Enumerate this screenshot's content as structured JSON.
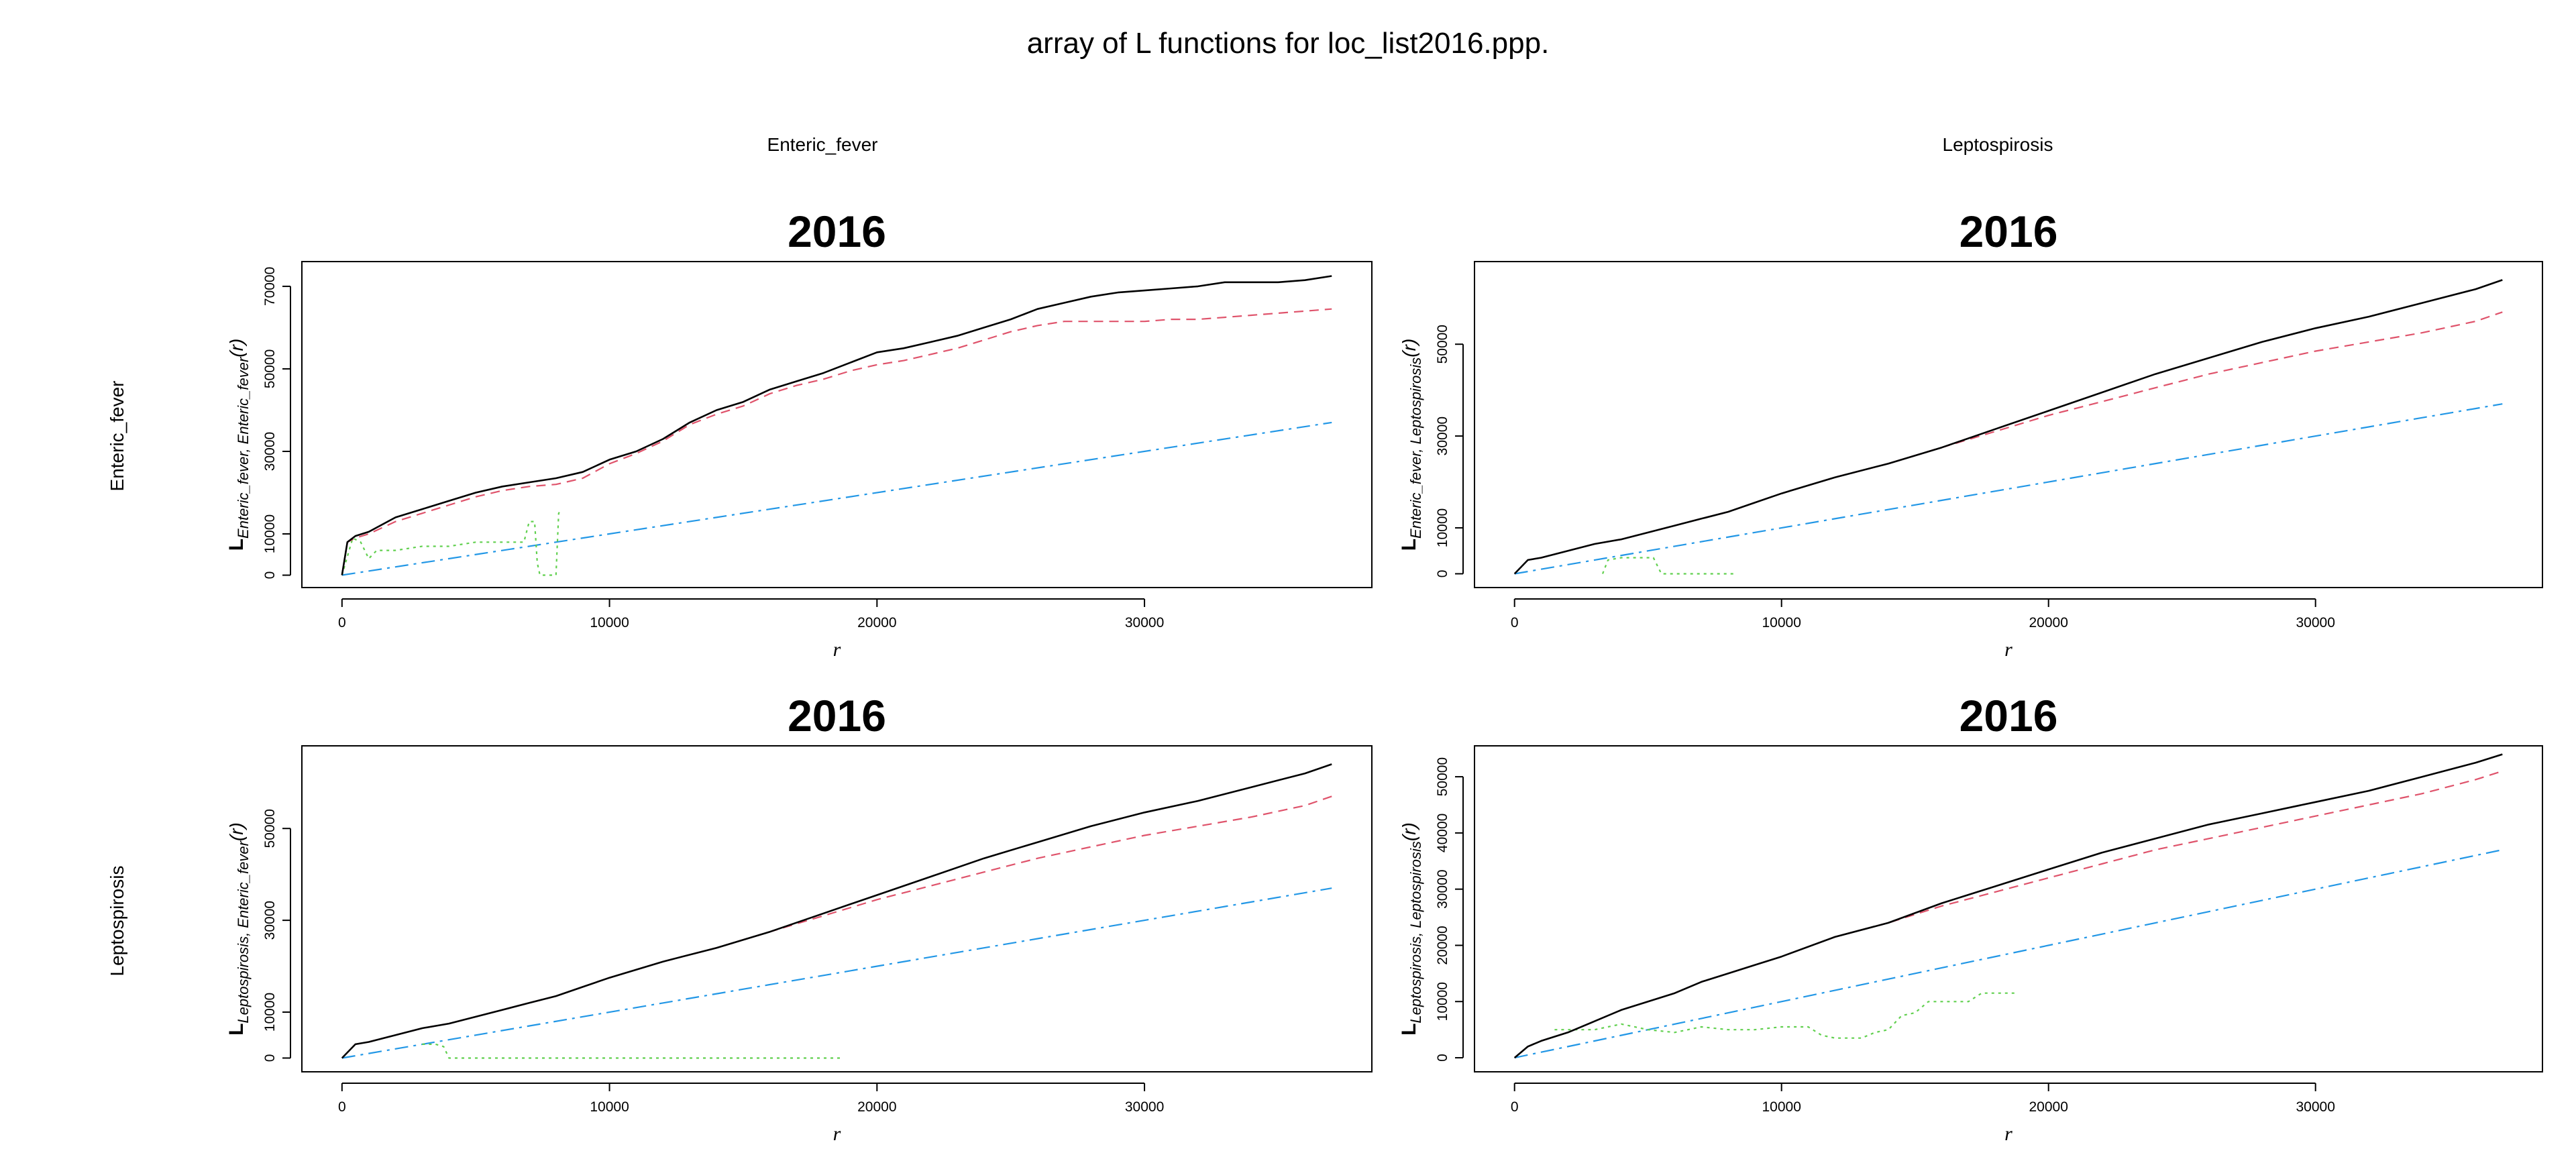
{
  "title": "array of L functions for loc_list2016.ppp.",
  "column_labels": [
    "Enteric_fever",
    "Leptospirosis"
  ],
  "row_labels": [
    "Enteric_fever",
    "Leptospirosis"
  ],
  "colors": {
    "obs": "#000000",
    "trans": "#DF536B",
    "theo": "#2297E6",
    "border": "#61D04F"
  },
  "chart_data": [
    {
      "type": "line",
      "title": "2016",
      "xlabel": "r",
      "ylabel": "L Enteric_fever, Enteric_fever(r)",
      "ylabel_main": "L",
      "ylabel_sub": "Enteric_fever, Enteric_fever",
      "ylabel_tail": "(r)",
      "xlim": [
        -1500,
        38500
      ],
      "ylim": [
        -3000,
        76000
      ],
      "xticks": [
        0,
        10000,
        20000,
        30000
      ],
      "yticks": [
        0,
        10000,
        30000,
        50000,
        70000
      ],
      "series": [
        {
          "key": "obs",
          "dash": "",
          "x": [
            0,
            200,
            500,
            1000,
            2000,
            3000,
            4000,
            5000,
            6000,
            7000,
            8000,
            9000,
            10000,
            11000,
            12000,
            13000,
            14000,
            15000,
            16000,
            17000,
            18000,
            19000,
            20000,
            21000,
            22000,
            23000,
            24000,
            25000,
            26000,
            27000,
            28000,
            29000,
            30000,
            31000,
            32000,
            33000,
            34000,
            35000,
            36000,
            37000
          ],
          "y": [
            0,
            8000,
            9500,
            10500,
            14000,
            16000,
            18000,
            20000,
            21500,
            22500,
            23500,
            25000,
            28000,
            30000,
            33000,
            37000,
            40000,
            42000,
            45000,
            47000,
            49000,
            51500,
            54000,
            55000,
            56500,
            58000,
            60000,
            62000,
            64500,
            66000,
            67500,
            68500,
            69000,
            69500,
            70000,
            71000,
            71000,
            71000,
            71500,
            72500
          ]
        },
        {
          "key": "trans",
          "dash": "14,9",
          "x": [
            0,
            200,
            500,
            1000,
            2000,
            3000,
            4000,
            5000,
            6000,
            7000,
            8000,
            9000,
            10000,
            11000,
            12000,
            13000,
            14000,
            15000,
            16000,
            17000,
            18000,
            19000,
            20000,
            21000,
            22000,
            23000,
            24000,
            25000,
            26000,
            27000,
            28000,
            29000,
            30000,
            31000,
            32000,
            33000,
            34000,
            35000,
            36000,
            37000
          ],
          "y": [
            0,
            8000,
            9000,
            10000,
            13000,
            15000,
            17000,
            19000,
            20500,
            21500,
            22000,
            23500,
            27000,
            29500,
            32500,
            36500,
            39000,
            41000,
            44000,
            46000,
            47500,
            49500,
            51000,
            52000,
            53500,
            55000,
            57000,
            59000,
            60500,
            61500,
            61500,
            61500,
            61500,
            62000,
            62000,
            62500,
            63000,
            63500,
            64000,
            64500
          ]
        },
        {
          "key": "theo",
          "dash": "20,8,4,8",
          "x": [
            0,
            37000
          ],
          "y": [
            0,
            37000
          ]
        },
        {
          "key": "border",
          "dash": "4,6",
          "x": [
            0,
            400,
            700,
            1000,
            1300,
            1500,
            2000,
            3000,
            4000,
            5000,
            6000,
            6800,
            7000,
            7200,
            7300,
            7400,
            7500,
            8000,
            8100,
            8200
          ],
          "y": [
            0,
            9000,
            8000,
            4000,
            6000,
            6000,
            6000,
            7000,
            7000,
            8000,
            8000,
            8000,
            13000,
            13000,
            3000,
            0,
            0,
            0,
            15000,
            16000
          ]
        }
      ]
    },
    {
      "type": "line",
      "title": "2016",
      "xlabel": "r",
      "ylabel": "L Enteric_fever, Leptospirosis(r)",
      "ylabel_main": "L",
      "ylabel_sub": "Enteric_fever, Leptospirosis",
      "ylabel_tail": "(r)",
      "xlim": [
        -1500,
        38500
      ],
      "ylim": [
        -3000,
        68000
      ],
      "xticks": [
        0,
        10000,
        20000,
        30000
      ],
      "yticks": [
        0,
        10000,
        30000,
        50000
      ],
      "series": [
        {
          "key": "obs",
          "dash": "",
          "x": [
            0,
            500,
            1000,
            2000,
            3000,
            4000,
            5000,
            6000,
            7000,
            8000,
            9000,
            10000,
            12000,
            14000,
            16000,
            18000,
            20000,
            22000,
            24000,
            26000,
            28000,
            30000,
            32000,
            34000,
            36000,
            37000
          ],
          "y": [
            0,
            3000,
            3500,
            5000,
            6500,
            7500,
            9000,
            10500,
            12000,
            13500,
            15500,
            17500,
            21000,
            24000,
            27500,
            31500,
            35500,
            39500,
            43500,
            47000,
            50500,
            53500,
            56000,
            59000,
            62000,
            64000
          ]
        },
        {
          "key": "trans",
          "dash": "14,9",
          "x": [
            0,
            500,
            1000,
            2000,
            3000,
            4000,
            5000,
            6000,
            7000,
            8000,
            9000,
            10000,
            12000,
            14000,
            16000,
            18000,
            20000,
            22000,
            24000,
            26000,
            28000,
            30000,
            32000,
            34000,
            36000,
            37000
          ],
          "y": [
            0,
            3000,
            3500,
            5000,
            6500,
            7500,
            9000,
            10500,
            12000,
            13500,
            15500,
            17500,
            21000,
            24000,
            27500,
            31000,
            34500,
            37500,
            40500,
            43500,
            46000,
            48500,
            50500,
            52500,
            55000,
            57000
          ]
        },
        {
          "key": "theo",
          "dash": "20,8,4,8",
          "x": [
            0,
            37000
          ],
          "y": [
            0,
            37000
          ]
        },
        {
          "key": "border",
          "dash": "4,6",
          "x": [
            3300,
            3500,
            4000,
            5000,
            5200,
            5500,
            6000,
            7000,
            8000,
            8300
          ],
          "y": [
            0,
            3000,
            3500,
            3500,
            3500,
            0,
            0,
            0,
            0,
            0
          ]
        }
      ]
    },
    {
      "type": "line",
      "title": "2016",
      "xlabel": "r",
      "ylabel": "L Leptospirosis, Enteric_fever(r)",
      "ylabel_main": "L",
      "ylabel_sub": "Leptospirosis, Enteric_fever",
      "ylabel_tail": "(r)",
      "xlim": [
        -1500,
        38500
      ],
      "ylim": [
        -3000,
        68000
      ],
      "xticks": [
        0,
        10000,
        20000,
        30000
      ],
      "yticks": [
        0,
        10000,
        30000,
        50000
      ],
      "series": [
        {
          "key": "obs",
          "dash": "",
          "x": [
            0,
            500,
            1000,
            2000,
            3000,
            4000,
            5000,
            6000,
            7000,
            8000,
            9000,
            10000,
            12000,
            14000,
            16000,
            18000,
            20000,
            22000,
            24000,
            26000,
            28000,
            30000,
            32000,
            34000,
            36000,
            37000
          ],
          "y": [
            0,
            3000,
            3500,
            5000,
            6500,
            7500,
            9000,
            10500,
            12000,
            13500,
            15500,
            17500,
            21000,
            24000,
            27500,
            31500,
            35500,
            39500,
            43500,
            47000,
            50500,
            53500,
            56000,
            59000,
            62000,
            64000
          ]
        },
        {
          "key": "trans",
          "dash": "14,9",
          "x": [
            0,
            500,
            1000,
            2000,
            3000,
            4000,
            5000,
            6000,
            7000,
            8000,
            9000,
            10000,
            12000,
            14000,
            16000,
            18000,
            20000,
            22000,
            24000,
            26000,
            28000,
            30000,
            32000,
            34000,
            36000,
            37000
          ],
          "y": [
            0,
            3000,
            3500,
            5000,
            6500,
            7500,
            9000,
            10500,
            12000,
            13500,
            15500,
            17500,
            21000,
            24000,
            27500,
            31000,
            34500,
            37500,
            40500,
            43500,
            46000,
            48500,
            50500,
            52500,
            55000,
            57000
          ]
        },
        {
          "key": "theo",
          "dash": "20,8,4,8",
          "x": [
            0,
            37000
          ],
          "y": [
            0,
            37000
          ]
        },
        {
          "key": "border",
          "dash": "4,6",
          "x": [
            3000,
            3500,
            3800,
            4000,
            5000,
            8000,
            12000,
            16000,
            18700
          ],
          "y": [
            3000,
            3000,
            2500,
            0,
            0,
            0,
            0,
            0,
            0
          ]
        }
      ]
    },
    {
      "type": "line",
      "title": "2016",
      "xlabel": "r",
      "ylabel": "L Leptospirosis, Leptospirosis(r)",
      "ylabel_main": "L",
      "ylabel_sub": "Leptospirosis, Leptospirosis",
      "ylabel_tail": "(r)",
      "xlim": [
        -1500,
        38500
      ],
      "ylim": [
        -2500,
        55500
      ],
      "xticks": [
        0,
        10000,
        20000,
        30000
      ],
      "yticks": [
        0,
        10000,
        20000,
        30000,
        40000,
        50000
      ],
      "series": [
        {
          "key": "obs",
          "dash": "",
          "x": [
            0,
            500,
            1000,
            2000,
            3000,
            4000,
            5000,
            6000,
            7000,
            8000,
            9000,
            10000,
            12000,
            14000,
            16000,
            18000,
            20000,
            22000,
            24000,
            26000,
            28000,
            30000,
            32000,
            34000,
            36000,
            37000
          ],
          "y": [
            0,
            2000,
            3000,
            4500,
            6500,
            8500,
            10000,
            11500,
            13500,
            15000,
            16500,
            18000,
            21500,
            24000,
            27500,
            30500,
            33500,
            36500,
            39000,
            41500,
            43500,
            45500,
            47500,
            50000,
            52500,
            54000
          ]
        },
        {
          "key": "trans",
          "dash": "14,9",
          "x": [
            0,
            500,
            1000,
            2000,
            3000,
            4000,
            5000,
            6000,
            7000,
            8000,
            9000,
            10000,
            12000,
            14000,
            16000,
            18000,
            20000,
            22000,
            24000,
            26000,
            28000,
            30000,
            32000,
            34000,
            36000,
            37000
          ],
          "y": [
            0,
            2000,
            3000,
            4500,
            6500,
            8500,
            10000,
            11500,
            13500,
            15000,
            16500,
            18000,
            21500,
            24000,
            27000,
            29500,
            32000,
            34500,
            37000,
            39000,
            41000,
            43000,
            45000,
            47000,
            49500,
            51000
          ]
        },
        {
          "key": "theo",
          "dash": "20,8,4,8",
          "x": [
            0,
            37000
          ],
          "y": [
            0,
            37000
          ]
        },
        {
          "key": "border",
          "dash": "4,6",
          "x": [
            1500,
            2000,
            3000,
            4000,
            5000,
            6000,
            7000,
            8000,
            9000,
            10000,
            11000,
            11500,
            12000,
            13000,
            13500,
            14000,
            14500,
            15000,
            15500,
            16000,
            17000,
            17500,
            18000,
            18800
          ],
          "y": [
            5000,
            5000,
            5000,
            6000,
            5000,
            4500,
            5500,
            5000,
            5000,
            5500,
            5500,
            4000,
            3500,
            3500,
            4500,
            5000,
            7500,
            8000,
            10000,
            10000,
            10000,
            11500,
            11500,
            11500
          ]
        }
      ]
    }
  ]
}
